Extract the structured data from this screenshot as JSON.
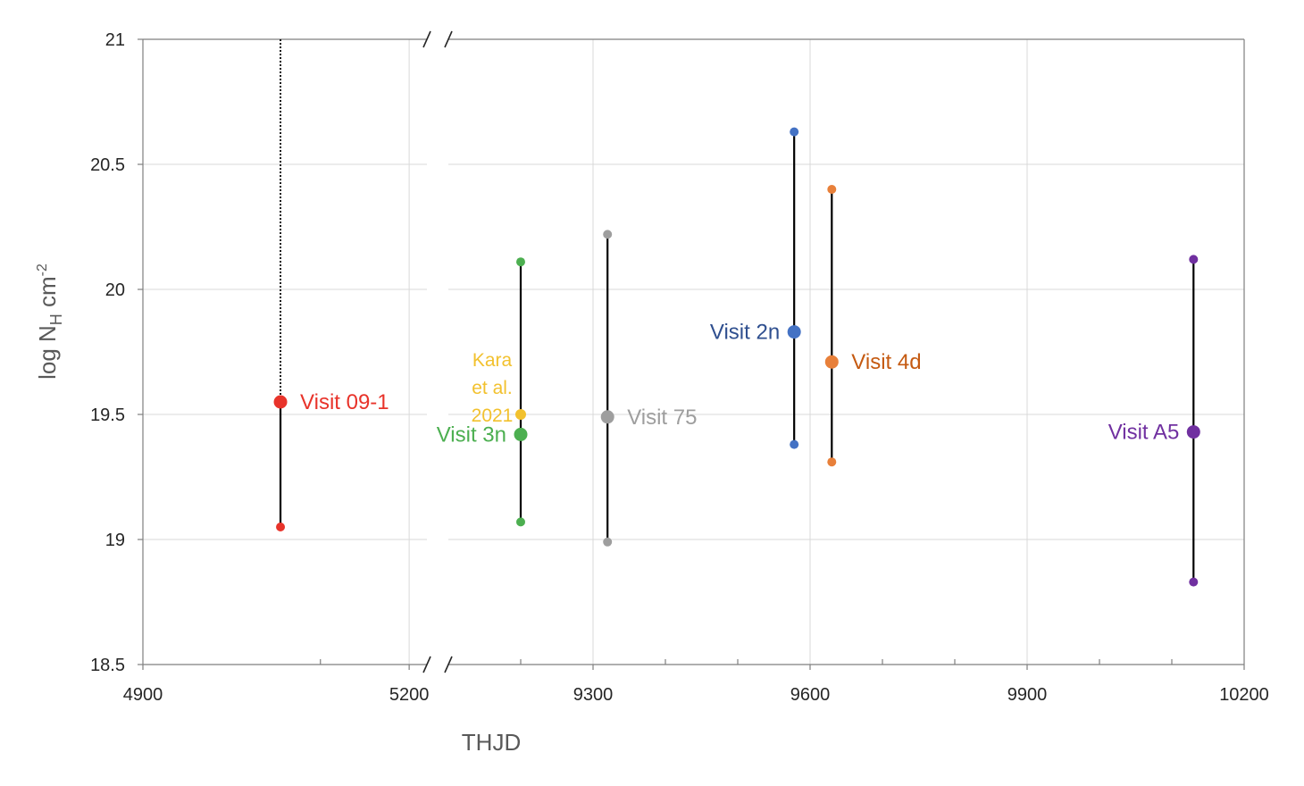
{
  "chart_data": {
    "type": "scatter",
    "title": "",
    "xlabel": "THJD",
    "ylabel_parts": {
      "main": "log N",
      "sub": "H",
      "unit": " cm",
      "sup": "-2"
    },
    "ylim": [
      18.5,
      21
    ],
    "y_ticks": [
      {
        "value": 18.5,
        "label": "18.5"
      },
      {
        "value": 19,
        "label": "19"
      },
      {
        "value": 19.5,
        "label": "19.5"
      },
      {
        "value": 20,
        "label": "20"
      },
      {
        "value": 20.5,
        "label": "20.5"
      },
      {
        "value": 21,
        "label": "21"
      }
    ],
    "x_axis_broken": true,
    "x_segments": [
      {
        "range": [
          4900,
          5220
        ],
        "tick_labels": [
          4900,
          5200
        ],
        "grid": [
          5200
        ],
        "minor_ticks": [
          5100
        ]
      },
      {
        "range": [
          9100,
          10200
        ],
        "tick_labels": [
          9300,
          9600,
          9900,
          10200
        ],
        "grid": [
          9300,
          9600,
          9900
        ],
        "minor_ticks": [
          9200,
          9400,
          9500,
          9700,
          9800,
          10000,
          10100
        ]
      }
    ],
    "grid": true,
    "series": [
      {
        "name": "Visit 09-1",
        "color": "#e8332a",
        "label_lines": [
          "Visit 09-1"
        ],
        "label_side": "right",
        "x": 5055,
        "y": 19.55,
        "y_low": 19.05,
        "y_high": null,
        "upper_limit": 21
      },
      {
        "name": "Visit  3n",
        "color": "#4caf50",
        "label_lines": [
          "Visit  3n"
        ],
        "label_side": "left",
        "x": 9200,
        "y": 19.42,
        "y_low": 19.07,
        "y_high": 20.11
      },
      {
        "name": "Kara et al. 2021",
        "color": "#f2c12e",
        "label_lines": [
          "Kara",
          "et al.",
          "2021"
        ],
        "label_side": "left",
        "x": 9200,
        "y": 19.5,
        "y_low": null,
        "y_high": null
      },
      {
        "name": "Visit 75",
        "color": "#9e9e9e",
        "label_lines": [
          "Visit 75"
        ],
        "label_side": "right",
        "x": 9320,
        "y": 19.49,
        "y_low": 18.99,
        "y_high": 20.22
      },
      {
        "name": "Visit 2n",
        "color": "#4472c4",
        "label_color": "#2f4f8f",
        "label_lines": [
          "Visit 2n"
        ],
        "label_side": "left",
        "x": 9578,
        "y": 19.83,
        "y_low": 19.38,
        "y_high": 20.63
      },
      {
        "name": "Visit 4d",
        "color": "#e8803a",
        "label_color": "#c55a11",
        "label_lines": [
          "Visit 4d"
        ],
        "label_side": "right",
        "x": 9630,
        "y": 19.71,
        "y_low": 19.31,
        "y_high": 20.4
      },
      {
        "name": "Visit A5",
        "color": "#7030a0",
        "label_lines": [
          "Visit A5"
        ],
        "label_side": "left",
        "x": 10130,
        "y": 19.43,
        "y_low": 18.83,
        "y_high": 20.12
      }
    ]
  }
}
